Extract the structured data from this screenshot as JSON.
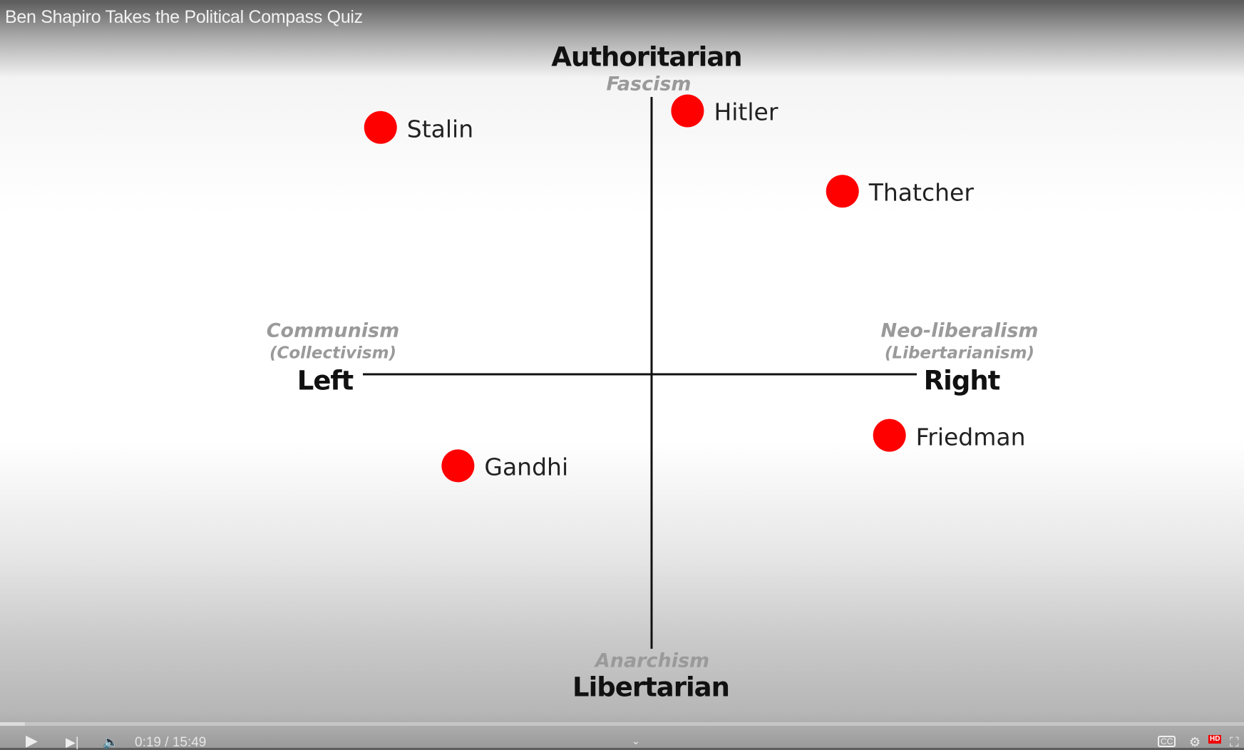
{
  "video": {
    "title": "Ben Shapiro Takes the Political Compass Quiz"
  },
  "player": {
    "current_time": "0:19",
    "duration": "15:49",
    "time_display": "0:19 / 15:49",
    "progress_percent": 2,
    "icons": [
      "play-icon",
      "next-icon",
      "volume-icon",
      "chevron-down-icon",
      "captions-icon",
      "settings-icon",
      "fullscreen-icon"
    ],
    "cc_label": "CC",
    "hd_badge": "HD"
  },
  "chart_data": {
    "type": "scatter",
    "xlim": [
      -10,
      10
    ],
    "ylim": [
      -10,
      10
    ],
    "axis_labels": {
      "top": "Authoritarian",
      "top_sub": "Fascism",
      "bottom": "Libertarian",
      "bottom_sub": "Anarchism",
      "left": "Left",
      "left_sub": "Communism",
      "left_sub2": "(Collectivism)",
      "right": "Right",
      "right_sub": "Neo-liberalism",
      "right_sub2": "(Libertarianism)"
    },
    "points": [
      {
        "name": "Stalin",
        "x": -9.8,
        "y": 8.9
      },
      {
        "name": "Hitler",
        "x": 1.3,
        "y": 9.5
      },
      {
        "name": "Thatcher",
        "x": 6.9,
        "y": 6.6
      },
      {
        "name": "Gandhi",
        "x": -7.0,
        "y": -3.3
      },
      {
        "name": "Friedman",
        "x": 8.6,
        "y": -2.2
      }
    ],
    "point_color": "#ff0000",
    "axis_color": "#111111"
  }
}
